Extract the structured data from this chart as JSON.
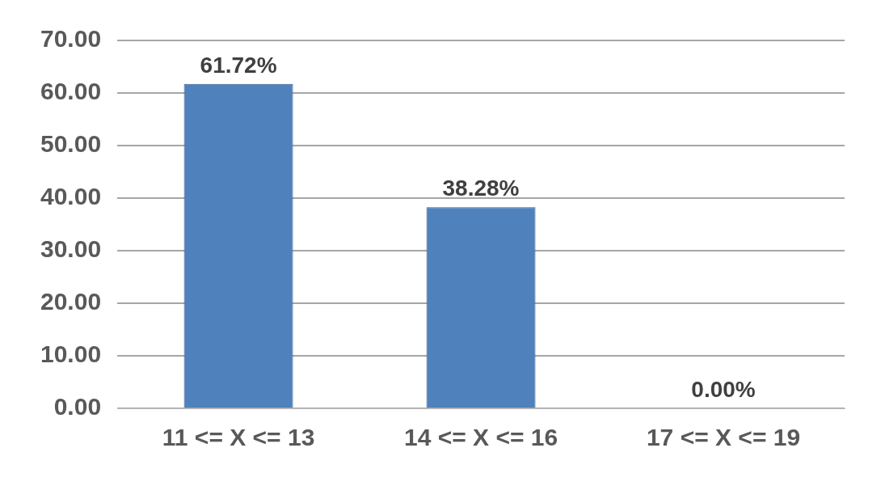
{
  "chart_data": {
    "type": "bar",
    "categories": [
      "11 <= X <= 13",
      "14 <= X <= 16",
      "17 <= X <= 19"
    ],
    "values": [
      61.72,
      38.28,
      0
    ],
    "value_labels": [
      "61.72%",
      "38.28%",
      "0.00%"
    ],
    "color": "#4f81bd",
    "ylim": [
      0,
      70
    ],
    "yticks": [
      {
        "value": 0,
        "label": "0.00"
      },
      {
        "value": 10,
        "label": "10.00"
      },
      {
        "value": 20,
        "label": "20.00"
      },
      {
        "value": 30,
        "label": "30.00"
      },
      {
        "value": 40,
        "label": "40.00"
      },
      {
        "value": 50,
        "label": "50.00"
      },
      {
        "value": 60,
        "label": "60.00"
      },
      {
        "value": 70,
        "label": "70.00"
      }
    ],
    "grid": "y"
  }
}
